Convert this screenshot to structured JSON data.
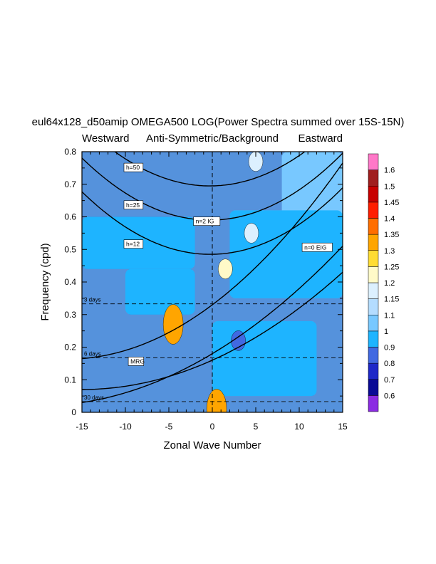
{
  "chart_data": {
    "type": "heatmap",
    "title": "eul64x128_d50amip OMEGA500 LOG(Power Spectra summed over 15S-15N)",
    "subtitle_center": "Anti-Symmetric/Background",
    "subtitle_left": "Westward",
    "subtitle_right": "Eastward",
    "xlabel": "Zonal Wave Number",
    "ylabel": "Frequency (cpd)",
    "xlim": [
      -15,
      15
    ],
    "ylim": [
      0,
      0.8
    ],
    "x_ticks": [
      -15,
      -10,
      -5,
      0,
      5,
      10,
      15
    ],
    "y_ticks": [
      0,
      0.1,
      0.2,
      0.3,
      0.4,
      0.5,
      0.6,
      0.7,
      0.8
    ],
    "reference_lines": [
      {
        "label": "3 days",
        "frequency": 0.333
      },
      {
        "label": "6 days",
        "frequency": 0.167
      },
      {
        "label": "30 days",
        "frequency": 0.033
      }
    ],
    "dispersion_labels": [
      "h=50",
      "h=25",
      "h=12",
      "n=2 IG",
      "n=0 EIG",
      "MRG"
    ],
    "colorbar": {
      "levels": [
        "0.6",
        "0.7",
        "0.8",
        "0.9",
        "1",
        "1.1",
        "1.15",
        "1.2",
        "1.25",
        "1.3",
        "1.35",
        "1.4",
        "1.45",
        "1.5",
        "1.6"
      ],
      "colors": [
        "#8b2be2",
        "#0a0a96",
        "#1e28c8",
        "#4169e1",
        "#1eb4ff",
        "#78c8ff",
        "#b4dcff",
        "#dcf0ff",
        "#fffac8",
        "#ffdc32",
        "#ffa500",
        "#ff6e00",
        "#ff1e00",
        "#c80000",
        "#a01e1e",
        "#ff78c8"
      ]
    },
    "highlights": [
      {
        "k": -4.5,
        "f": 0.27,
        "value": 1.3
      },
      {
        "k": 1.5,
        "f": 0.44,
        "value": 1.2
      },
      {
        "k": 4.5,
        "f": 0.55,
        "value": 1.15
      },
      {
        "k": 5.0,
        "f": 0.77,
        "value": 1.15
      },
      {
        "k": 3.0,
        "f": 0.22,
        "value": 0.8
      },
      {
        "k": 0.5,
        "f": 0.01,
        "value": 1.3
      }
    ]
  }
}
